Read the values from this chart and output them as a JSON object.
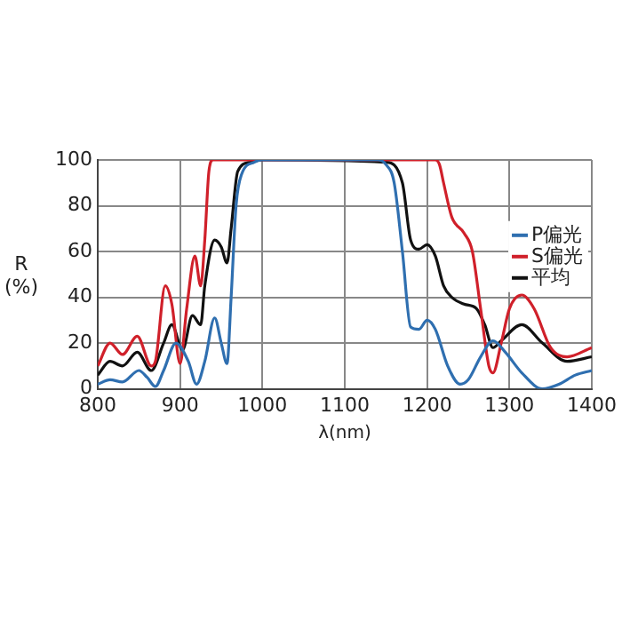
{
  "chart_data": {
    "type": "line",
    "xlabel": "λ(nm)",
    "ylabel": "R (%)",
    "xlim": [
      800,
      1400
    ],
    "ylim": [
      0,
      100
    ],
    "xticks": [
      800,
      900,
      1000,
      1100,
      1200,
      1300,
      1400
    ],
    "yticks": [
      0,
      20,
      40,
      60,
      80,
      100
    ],
    "grid": true,
    "legend": "right",
    "marker": "none",
    "line_style": "solid",
    "series": [
      {
        "name": "P偏光",
        "color": "#2f6fb0",
        "x": [
          800,
          815,
          830,
          850,
          860,
          870,
          880,
          895,
          910,
          920,
          930,
          942,
          950,
          957,
          962,
          968,
          975,
          990,
          1000,
          1140,
          1150,
          1160,
          1170,
          1180,
          1190,
          1200,
          1210,
          1225,
          1240,
          1250,
          1265,
          1280,
          1295,
          1315,
          1340,
          1360,
          1380,
          1400
        ],
        "values": [
          2,
          4,
          3,
          8,
          5,
          1,
          8,
          20,
          12,
          2,
          12,
          31,
          20,
          11,
          40,
          80,
          94,
          99,
          100,
          100,
          98,
          90,
          60,
          27,
          26,
          30,
          26,
          10,
          2,
          4,
          14,
          21,
          16,
          7,
          0,
          2,
          6,
          8
        ]
      },
      {
        "name": "S偏光",
        "color": "#d0202a",
        "x": [
          800,
          815,
          830,
          848,
          865,
          870,
          882,
          890,
          900,
          908,
          918,
          925,
          930,
          935,
          940,
          1210,
          1215,
          1220,
          1230,
          1245,
          1255,
          1265,
          1275,
          1280,
          1290,
          1300,
          1315,
          1330,
          1350,
          1370,
          1400
        ],
        "values": [
          10,
          20,
          15,
          23,
          10,
          12,
          45,
          37,
          11,
          35,
          58,
          45,
          65,
          95,
          100,
          100,
          98,
          90,
          75,
          68,
          60,
          35,
          10,
          7,
          20,
          35,
          41,
          35,
          18,
          14,
          18
        ]
      },
      {
        "name": "平均",
        "color": "#111111",
        "x": [
          800,
          815,
          830,
          848,
          865,
          880,
          890,
          903,
          915,
          925,
          930,
          942,
          950,
          957,
          962,
          970,
          985,
          1000,
          1150,
          1170,
          1180,
          1190,
          1200,
          1210,
          1220,
          1230,
          1245,
          1260,
          1270,
          1280,
          1290,
          1315,
          1340,
          1370,
          1400
        ],
        "values": [
          6,
          12,
          10,
          16,
          8,
          20,
          28,
          17,
          32,
          28,
          45,
          65,
          62,
          55,
          70,
          95,
          99,
          100,
          99,
          90,
          65,
          61,
          63,
          58,
          45,
          40,
          37,
          35,
          28,
          18,
          21,
          28,
          20,
          12,
          14
        ]
      }
    ]
  }
}
